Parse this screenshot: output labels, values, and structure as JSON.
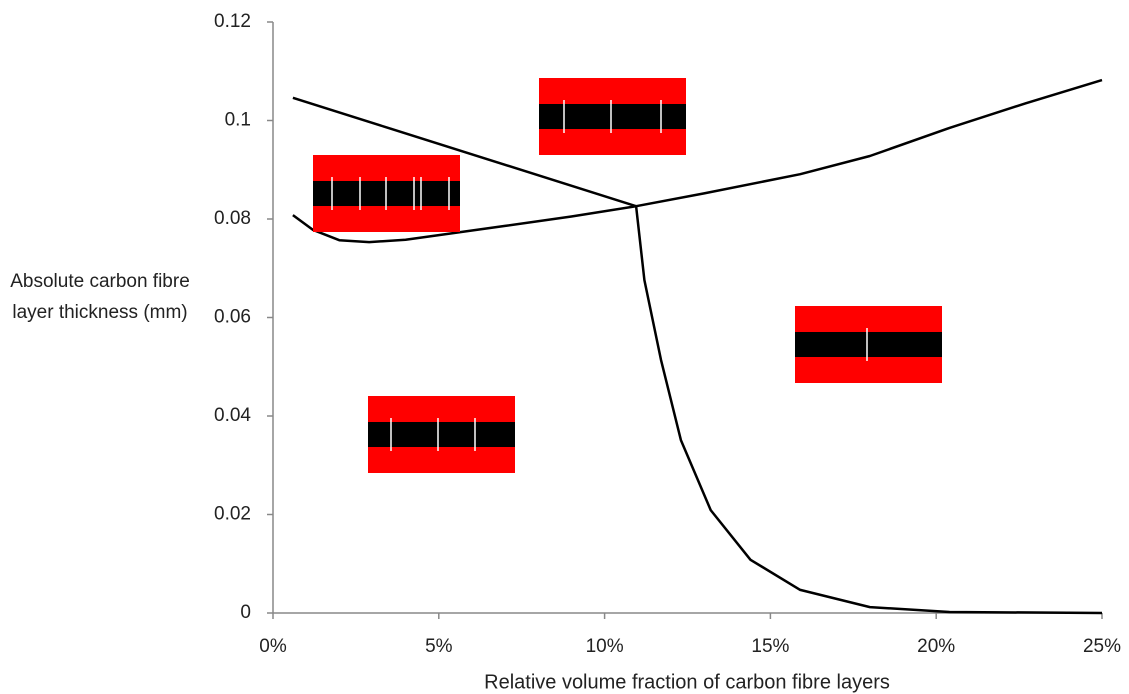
{
  "chart_data": {
    "type": "line",
    "xlabel": "Relative volume fraction of carbon fibre layers",
    "ylabel": "Absolute carbon fibre layer thickness (mm)",
    "xlim": [
      0,
      25
    ],
    "xticks": [
      {
        "value": 0,
        "label": "0%"
      },
      {
        "value": 5,
        "label": "5%"
      },
      {
        "value": 10,
        "label": "10%"
      },
      {
        "value": 15,
        "label": "15%"
      },
      {
        "value": 20,
        "label": "20%"
      },
      {
        "value": 25,
        "label": "25%"
      }
    ],
    "ylim": [
      0,
      0.12
    ],
    "yticks": [
      0,
      0.02,
      0.04,
      0.06,
      0.08,
      0.1,
      0.12
    ],
    "grid": false,
    "series": [
      {
        "color": "#000000",
        "x": [
          0.6,
          10.95
        ],
        "values": [
          0.1046,
          0.0826
        ]
      },
      {
        "color": "#000000",
        "x": [
          0.6,
          1.2,
          2.0,
          2.9,
          4.0,
          5.3,
          7.0,
          9.0,
          10.95,
          13.0,
          15.9,
          18.0,
          20.4,
          22.7,
          25
        ],
        "values": [
          0.0808,
          0.0778,
          0.0757,
          0.0753,
          0.0758,
          0.077,
          0.0786,
          0.0805,
          0.0826,
          0.0852,
          0.0891,
          0.0928,
          0.0985,
          0.1035,
          0.1082
        ]
      },
      {
        "color": "#000000",
        "x": [
          10.95,
          11.2,
          11.7,
          12.3,
          13.2,
          14.4,
          15.9,
          18.0,
          20.4,
          25
        ],
        "values": [
          0.0826,
          0.0676,
          0.0514,
          0.0351,
          0.0209,
          0.0108,
          0.0047,
          0.0012,
          0.0002,
          0
        ]
      }
    ]
  }
}
